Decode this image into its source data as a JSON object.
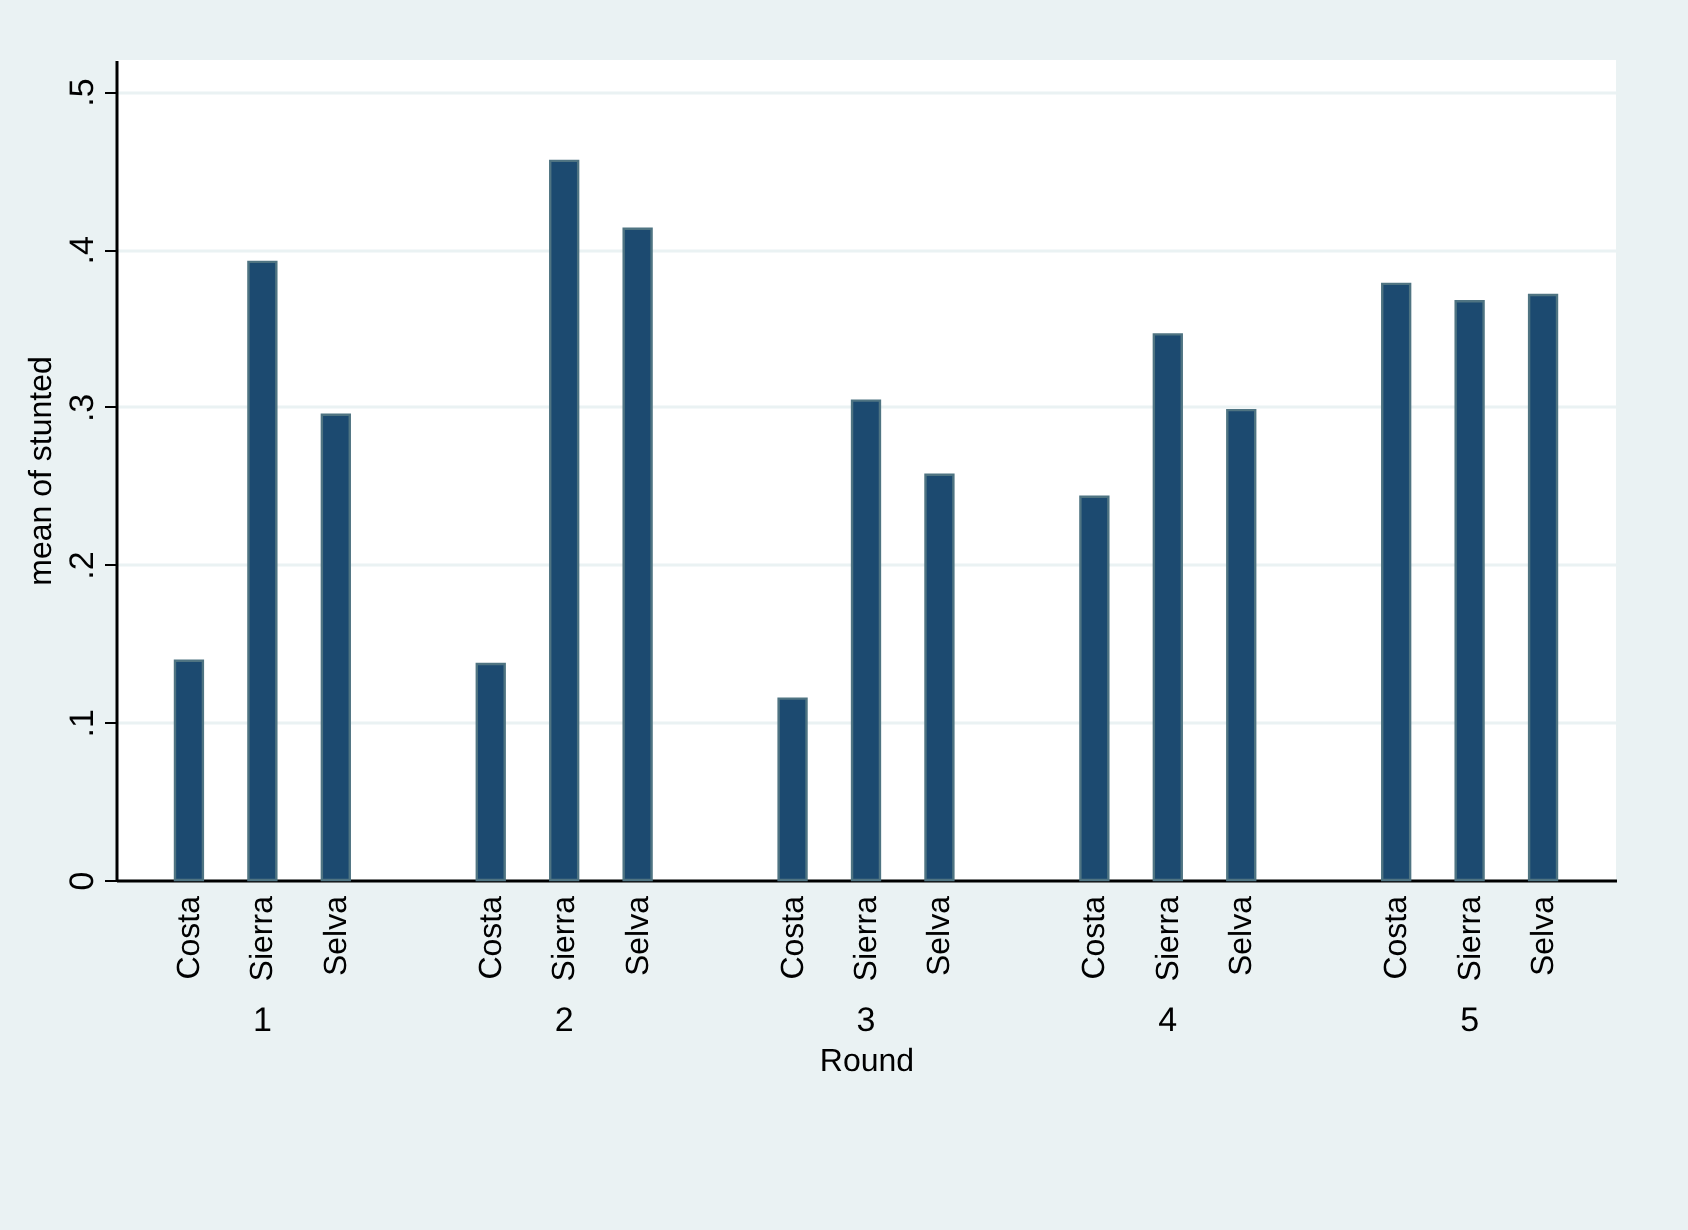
{
  "chart_data": {
    "type": "bar",
    "xlabel": "Round",
    "ylabel": "mean of stunted",
    "categories": [
      "1",
      "2",
      "3",
      "4",
      "5"
    ],
    "series": [
      {
        "name": "Costa",
        "color": "#1c4a70",
        "values": [
          0.139,
          0.137,
          0.115,
          0.243,
          0.378
        ]
      },
      {
        "name": "Sierra",
        "color": "#1c4a70",
        "values": [
          0.392,
          0.456,
          0.304,
          0.346,
          0.367
        ]
      },
      {
        "name": "Selva",
        "color": "#1c4a70",
        "values": [
          0.295,
          0.413,
          0.257,
          0.298,
          0.371
        ]
      }
    ],
    "ylim": [
      0,
      0.52
    ],
    "yticks": [
      0,
      {
        "value": 0.1,
        "label": ".1"
      },
      {
        "value": 0.2,
        "label": ".2"
      },
      {
        "value": 0.3,
        "label": ".3"
      },
      {
        "value": 0.4,
        "label": ".4"
      },
      {
        "value": 0.5,
        "label": ".5"
      }
    ],
    "grid": "y",
    "legend": false
  }
}
